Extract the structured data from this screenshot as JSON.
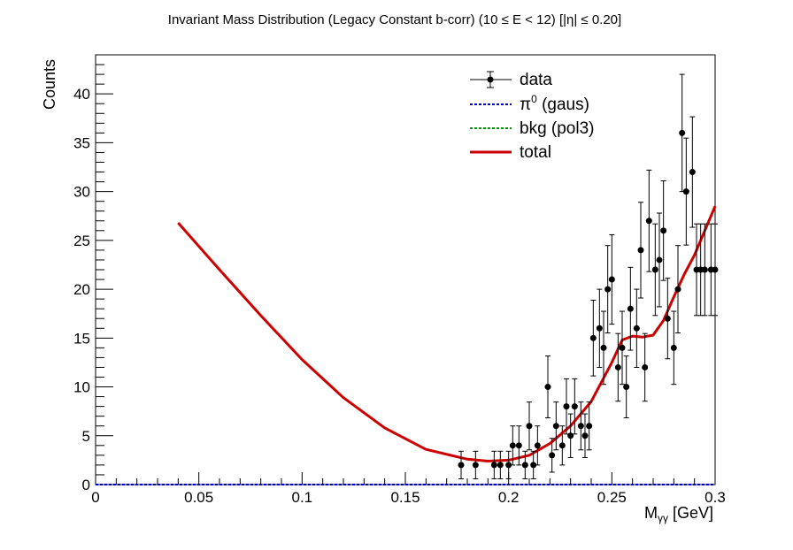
{
  "chart_data": {
    "type": "scatter",
    "title": "Invariant Mass Distribution (Legacy Constant b-corr)   (10 ≤ E < 12)   [|η| ≤ 0.20]",
    "xlabel": "Mγγ  [GeV]",
    "xlabel_main": "M",
    "xlabel_sub": "γγ",
    "xlabel_unit": "  [GeV]",
    "ylabel": "Counts",
    "xlim": [
      0,
      0.3
    ],
    "ylim": [
      0,
      44
    ],
    "x_ticks": [
      {
        "value": 0,
        "label": "0"
      },
      {
        "value": 0.05,
        "label": "0.05"
      },
      {
        "value": 0.1,
        "label": "0.1"
      },
      {
        "value": 0.15,
        "label": "0.15"
      },
      {
        "value": 0.2,
        "label": "0.2"
      },
      {
        "value": 0.25,
        "label": "0.25"
      },
      {
        "value": 0.3,
        "label": "0.3"
      }
    ],
    "y_ticks": [
      {
        "value": 0,
        "label": "0"
      },
      {
        "value": 5,
        "label": "5"
      },
      {
        "value": 10,
        "label": "10"
      },
      {
        "value": 15,
        "label": "15"
      },
      {
        "value": 20,
        "label": "20"
      },
      {
        "value": 25,
        "label": "25"
      },
      {
        "value": 30,
        "label": "30"
      },
      {
        "value": 35,
        "label": "35"
      },
      {
        "value": 40,
        "label": "40"
      }
    ],
    "legend": {
      "placement": "top-right",
      "entries": [
        {
          "label": "data",
          "style": "marker-errorbar",
          "color": "#000000"
        },
        {
          "label_main": "π",
          "label_sup": "0",
          "label_rest": " (gaus)",
          "style": "dotted",
          "color": "#0000cc"
        },
        {
          "label": "bkg (pol3)",
          "style": "dotted",
          "color": "#009900"
        },
        {
          "label": "total",
          "style": "solid",
          "color": "#cc0000"
        }
      ]
    },
    "data_points": {
      "name": "data",
      "color": "#000000",
      "x": [
        0.177,
        0.184,
        0.193,
        0.196,
        0.2,
        0.202,
        0.205,
        0.208,
        0.21,
        0.212,
        0.214,
        0.219,
        0.221,
        0.223,
        0.226,
        0.228,
        0.23,
        0.232,
        0.235,
        0.237,
        0.239,
        0.241,
        0.244,
        0.246,
        0.248,
        0.25,
        0.253,
        0.255,
        0.257,
        0.259,
        0.262,
        0.264,
        0.266,
        0.268,
        0.271,
        0.273,
        0.275,
        0.277,
        0.28,
        0.282,
        0.284,
        0.286,
        0.289,
        0.291,
        0.293,
        0.295,
        0.298,
        0.3
      ],
      "y": [
        2,
        2,
        2,
        2,
        2,
        4,
        4,
        2,
        6,
        2,
        4,
        10,
        3,
        6,
        4,
        8,
        5,
        8,
        6,
        5,
        6,
        15,
        16,
        14,
        20,
        21,
        12,
        14,
        10,
        18,
        16,
        24,
        12,
        27,
        22,
        23,
        26,
        17,
        14,
        20,
        36,
        30,
        32,
        22,
        22,
        22,
        22,
        22
      ]
    },
    "curves": [
      {
        "name": "total",
        "color": "#cc0000",
        "style": "solid",
        "x": [
          0.04,
          0.06,
          0.08,
          0.1,
          0.12,
          0.14,
          0.16,
          0.18,
          0.19,
          0.2,
          0.21,
          0.22,
          0.23,
          0.24,
          0.25,
          0.255,
          0.26,
          0.265,
          0.27,
          0.275,
          0.28,
          0.285,
          0.29,
          0.3
        ],
        "y": [
          26.8,
          22.0,
          17.3,
          12.8,
          8.9,
          5.8,
          3.6,
          2.6,
          2.4,
          2.5,
          3.0,
          4.2,
          6.0,
          8.5,
          12.5,
          14.8,
          15.2,
          15.1,
          15.3,
          16.8,
          19.2,
          21.5,
          23.5,
          28.5
        ]
      },
      {
        "name": "bkg (pol3)",
        "color": "#009900",
        "style": "dotted",
        "x": [
          0,
          0.3
        ],
        "y": [
          0,
          0
        ]
      },
      {
        "name": "π0 (gaus)",
        "color": "#0000cc",
        "style": "dotted",
        "x": [
          0,
          0.3
        ],
        "y": [
          0,
          0
        ]
      }
    ],
    "grid": false
  }
}
